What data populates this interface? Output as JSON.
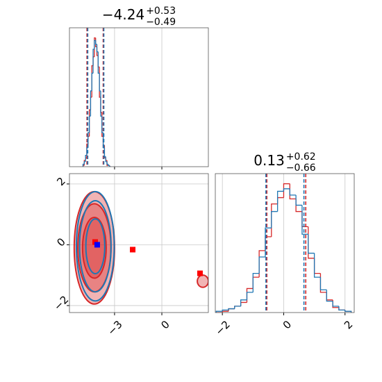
{
  "chart_data": [
    {
      "type": "histogram",
      "title": {
        "value": "−4.24",
        "upper": "+0.53",
        "lower": "−0.49"
      },
      "xlim": [
        -5.86,
        2.95
      ],
      "ylim": [
        0,
        1.1
      ],
      "xticks": [
        -3,
        0
      ],
      "tick_labels": false,
      "grid": true,
      "bins": [
        -5.0,
        -4.92,
        -4.84,
        -4.76,
        -4.68,
        -4.6,
        -4.52,
        -4.44,
        -4.36,
        -4.28,
        -4.2,
        -4.12,
        -4.04,
        -3.96,
        -3.88,
        -3.8,
        -3.72,
        -3.64,
        -3.56,
        -3.48,
        -3.4,
        -3.32,
        -3.24
      ],
      "series": [
        {
          "color": "#d62728",
          "values": [
            0.01,
            0.05,
            0.07,
            0.18,
            0.24,
            0.45,
            0.55,
            0.8,
            0.87,
            1.02,
            0.95,
            0.88,
            0.79,
            0.55,
            0.43,
            0.24,
            0.17,
            0.07,
            0.05,
            0.01,
            0.01,
            0.0
          ],
          "quantiles": [
            -4.75,
            -3.72
          ]
        },
        {
          "color": "#1f77b4",
          "values": [
            0.02,
            0.04,
            0.09,
            0.15,
            0.27,
            0.4,
            0.6,
            0.74,
            0.93,
            1.0,
            0.97,
            0.91,
            0.74,
            0.6,
            0.4,
            0.27,
            0.15,
            0.08,
            0.04,
            0.02,
            0.01,
            0.0
          ],
          "quantiles": [
            -4.7,
            -3.68
          ]
        }
      ]
    },
    {
      "type": "contour",
      "xlim": [
        -5.86,
        2.95
      ],
      "ylim": [
        -2.23,
        2.34
      ],
      "grid": true,
      "xticks": [
        {
          "value": -3,
          "label": "−3"
        },
        0
      ],
      "yticks": [
        {
          "value": -2,
          "label": "−2"
        },
        0,
        2
      ],
      "series": [
        {
          "color": "#d62728",
          "filled": true,
          "center": [
            -4.28,
            -0.1
          ],
          "levels": [
            [
              1.28,
              1.85
            ],
            [
              1.05,
              1.45
            ],
            [
              0.75,
              1.0
            ]
          ]
        },
        {
          "color": "#d62728",
          "filled": true,
          "center": [
            2.6,
            -1.2
          ],
          "levels": [
            [
              0.35,
              0.2
            ]
          ]
        },
        {
          "color": "#1f77b4",
          "filled": false,
          "center": [
            -4.22,
            -0.05
          ],
          "levels": [
            [
              1.2,
              1.8
            ],
            [
              1.0,
              1.5
            ],
            [
              0.6,
              0.9
            ]
          ]
        }
      ],
      "markers": [
        {
          "x": -4.23,
          "y": 0.09,
          "color": "#ff0000"
        },
        {
          "x": -4.1,
          "y": 0.0,
          "color": "#0000ff"
        },
        {
          "x": -1.85,
          "y": -0.16,
          "color": "#ff0000"
        },
        {
          "x": 2.42,
          "y": -0.94,
          "color": "#ff0000"
        }
      ]
    },
    {
      "type": "histogram",
      "title": {
        "value": "0.13",
        "upper": "+0.62",
        "lower": "−0.66"
      },
      "xlim": [
        -2.23,
        2.3
      ],
      "ylim": [
        0,
        1.1
      ],
      "xticks": [
        {
          "value": -2,
          "label": "−2"
        },
        0,
        2
      ],
      "tick_labels": true,
      "grid": true,
      "bins": [
        -2.2,
        -2.0,
        -1.8,
        -1.6,
        -1.4,
        -1.2,
        -1.0,
        -0.8,
        -0.6,
        -0.4,
        -0.2,
        0.0,
        0.2,
        0.4,
        0.6,
        0.8,
        1.0,
        1.2,
        1.4,
        1.6,
        1.8,
        2.0,
        2.2
      ],
      "series": [
        {
          "color": "#d62728",
          "values": [
            0.0,
            0.01,
            0.03,
            0.05,
            0.08,
            0.19,
            0.28,
            0.49,
            0.6,
            0.86,
            0.91,
            1.02,
            0.9,
            0.8,
            0.68,
            0.43,
            0.31,
            0.16,
            0.1,
            0.04,
            0.02,
            0.01
          ],
          "quantiles": [
            -0.55,
            0.72
          ]
        },
        {
          "color": "#1f77b4",
          "values": [
            0.01,
            0.02,
            0.03,
            0.05,
            0.1,
            0.16,
            0.31,
            0.44,
            0.67,
            0.8,
            0.96,
            0.98,
            0.93,
            0.85,
            0.62,
            0.47,
            0.28,
            0.18,
            0.09,
            0.05,
            0.02,
            0.01
          ],
          "quantiles": [
            -0.58,
            0.66
          ]
        }
      ]
    }
  ]
}
